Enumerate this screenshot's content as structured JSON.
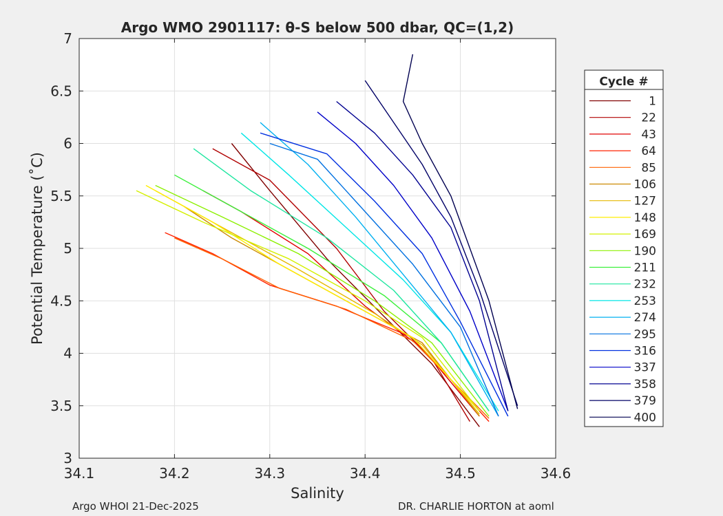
{
  "chart_data": {
    "type": "line",
    "title": "Argo WMO 2901117: θ-S below 500 dbar,  QC=(1,2)",
    "xlabel": "Salinity",
    "ylabel": "Potential Temperature (˚C)",
    "xlim": [
      34.1,
      34.6
    ],
    "ylim": [
      3,
      7
    ],
    "xticks": [
      "34.1",
      "34.2",
      "34.3",
      "34.4",
      "34.5",
      "34.6"
    ],
    "yticks": [
      "3",
      "3.5",
      "4",
      "4.5",
      "5",
      "5.5",
      "6",
      "6.5",
      "7"
    ],
    "grid": true,
    "legend_title": "Cycle #",
    "legend_position": "right",
    "series": [
      {
        "name": "1",
        "color": "#800000",
        "x": [
          34.52,
          34.47,
          34.42,
          34.36,
          34.3,
          34.26
        ],
        "y": [
          3.3,
          3.9,
          4.35,
          4.9,
          5.55,
          6.0
        ]
      },
      {
        "name": "22",
        "color": "#b00000",
        "x": [
          34.51,
          34.47,
          34.42,
          34.37,
          34.3,
          34.24
        ],
        "y": [
          3.35,
          3.95,
          4.4,
          5.0,
          5.65,
          5.95
        ]
      },
      {
        "name": "43",
        "color": "#e00000",
        "x": [
          34.52,
          34.46,
          34.4,
          34.34,
          34.27,
          34.23
        ],
        "y": [
          3.4,
          4.05,
          4.45,
          4.95,
          5.35,
          5.55
        ]
      },
      {
        "name": "64",
        "color": "#ff2000",
        "x": [
          34.53,
          34.45,
          34.37,
          34.3,
          34.24,
          34.19
        ],
        "y": [
          3.35,
          4.15,
          4.45,
          4.65,
          4.95,
          5.15
        ]
      },
      {
        "name": "85",
        "color": "#ff6000",
        "x": [
          34.53,
          34.45,
          34.38,
          34.31,
          34.25,
          34.2
        ],
        "y": [
          3.38,
          4.12,
          4.42,
          4.62,
          4.9,
          5.1
        ]
      },
      {
        "name": "106",
        "color": "#cc8a00",
        "x": [
          34.52,
          34.46,
          34.4,
          34.33,
          34.26,
          34.21
        ],
        "y": [
          3.4,
          4.1,
          4.4,
          4.75,
          5.1,
          5.4
        ]
      },
      {
        "name": "127",
        "color": "#e6b800",
        "x": [
          34.52,
          34.46,
          34.41,
          34.33,
          34.25,
          34.18
        ],
        "y": [
          3.42,
          4.08,
          4.38,
          4.8,
          5.2,
          5.55
        ]
      },
      {
        "name": "148",
        "color": "#ffee00",
        "x": [
          34.52,
          34.45,
          34.39,
          34.31,
          34.24,
          34.17
        ],
        "y": [
          3.45,
          4.15,
          4.45,
          4.85,
          5.25,
          5.6
        ]
      },
      {
        "name": "169",
        "color": "#d4f000",
        "x": [
          34.52,
          34.46,
          34.4,
          34.32,
          34.23,
          34.16
        ],
        "y": [
          3.45,
          4.15,
          4.5,
          4.9,
          5.25,
          5.55
        ]
      },
      {
        "name": "190",
        "color": "#8cf000",
        "x": [
          34.53,
          34.47,
          34.41,
          34.33,
          34.25,
          34.18
        ],
        "y": [
          3.4,
          4.1,
          4.5,
          4.95,
          5.3,
          5.6
        ]
      },
      {
        "name": "211",
        "color": "#3cf03c",
        "x": [
          34.53,
          34.48,
          34.42,
          34.34,
          34.26,
          34.2
        ],
        "y": [
          3.45,
          4.1,
          4.55,
          5.0,
          5.4,
          5.7
        ]
      },
      {
        "name": "232",
        "color": "#1ee6a0",
        "x": [
          34.53,
          34.48,
          34.43,
          34.36,
          34.28,
          34.22
        ],
        "y": [
          3.45,
          4.1,
          4.6,
          5.1,
          5.55,
          5.95
        ]
      },
      {
        "name": "253",
        "color": "#00e6e6",
        "x": [
          34.54,
          34.49,
          34.44,
          34.38,
          34.32,
          34.27
        ],
        "y": [
          3.45,
          4.2,
          4.7,
          5.2,
          5.7,
          6.1
        ]
      },
      {
        "name": "274",
        "color": "#00b0f0",
        "x": [
          34.54,
          34.49,
          34.44,
          34.39,
          34.34,
          34.29
        ],
        "y": [
          3.4,
          4.2,
          4.75,
          5.3,
          5.8,
          6.2
        ]
      },
      {
        "name": "295",
        "color": "#0070e0",
        "x": [
          34.54,
          34.5,
          34.45,
          34.4,
          34.35,
          34.3
        ],
        "y": [
          3.4,
          4.25,
          4.85,
          5.35,
          5.85,
          6.0
        ]
      },
      {
        "name": "316",
        "color": "#0030e0",
        "x": [
          34.55,
          34.5,
          34.46,
          34.41,
          34.36,
          34.29
        ],
        "y": [
          3.4,
          4.3,
          4.95,
          5.45,
          5.9,
          6.1
        ]
      },
      {
        "name": "337",
        "color": "#0000c8",
        "x": [
          34.55,
          34.51,
          34.47,
          34.43,
          34.39,
          34.35
        ],
        "y": [
          3.45,
          4.4,
          5.1,
          5.6,
          6.0,
          6.3
        ]
      },
      {
        "name": "358",
        "color": "#000090",
        "x": [
          34.55,
          34.52,
          34.49,
          34.45,
          34.41,
          34.37
        ],
        "y": [
          3.45,
          4.5,
          5.2,
          5.7,
          6.1,
          6.4
        ]
      },
      {
        "name": "379",
        "color": "#000066",
        "x": [
          34.56,
          34.52,
          34.49,
          34.46,
          34.43,
          34.4
        ],
        "y": [
          3.5,
          4.6,
          5.3,
          5.8,
          6.2,
          6.6
        ]
      },
      {
        "name": "400",
        "color": "#000050",
        "x": [
          34.56,
          34.53,
          34.49,
          34.46,
          34.44,
          34.45
        ],
        "y": [
          3.47,
          4.5,
          5.5,
          6.0,
          6.4,
          6.85
        ]
      }
    ]
  },
  "footer": {
    "left": "Argo WHOI 21-Dec-2025",
    "right": "DR. CHARLIE HORTON at aoml"
  }
}
